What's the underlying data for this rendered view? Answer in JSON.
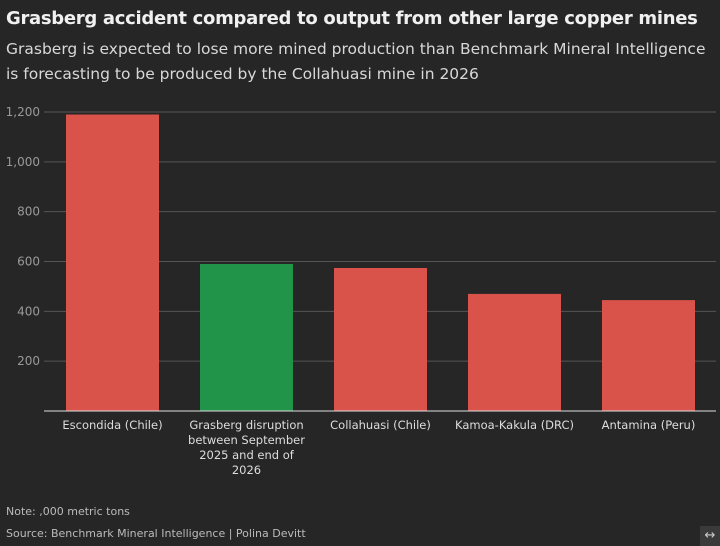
{
  "chart_data": {
    "type": "bar",
    "title": "Grasberg accident compared to output from other large copper mines",
    "subtitle": "Grasberg is expected to lose more mined production than Benchmark Mineral Intelligence is forecasting to be produced by the Collahuasi mine in 2026",
    "categories": [
      "Escondida (Chile)",
      "Grasberg disruption between September 2025 and end of 2026",
      "Collahuasi (Chile)",
      "Kamoa-Kakula (DRC)",
      "Antamina (Peru)"
    ],
    "values": [
      1190,
      590,
      574,
      470,
      445
    ],
    "colors": [
      "#d9534a",
      "#22944a",
      "#d9534a",
      "#d9534a",
      "#d9534a"
    ],
    "yticks": [
      200,
      400,
      600,
      800,
      "1,000",
      "1,200"
    ],
    "ylim": [
      0,
      1200
    ],
    "xlabel": "",
    "ylabel": "",
    "grid": true
  },
  "note": "Note: ,000 metric tons",
  "source": "Source: Benchmark Mineral Intelligence | Polina Devitt",
  "expand_icon": "↔"
}
